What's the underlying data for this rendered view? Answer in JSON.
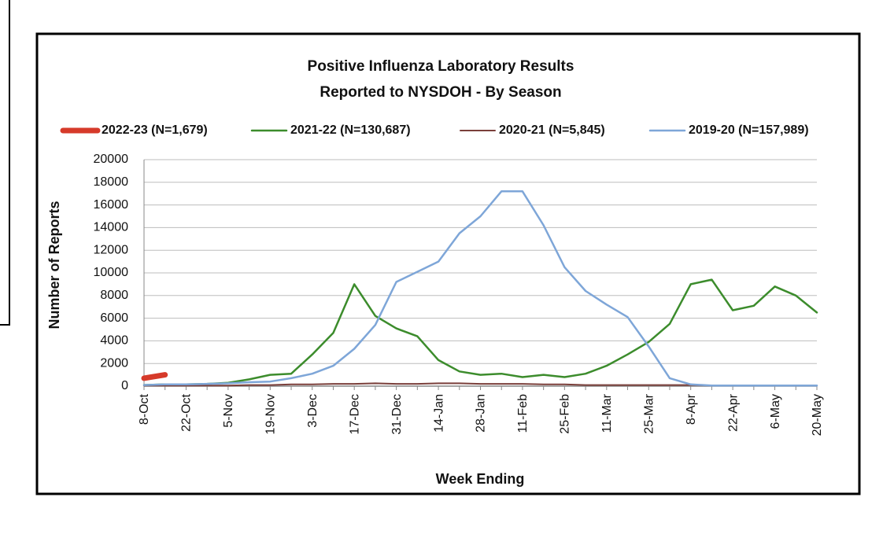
{
  "chart_data": {
    "type": "line",
    "title": [
      "Positive Influenza Laboratory Results",
      "Reported to NYSDOH - By Season"
    ],
    "x_label": "Week Ending",
    "y_label": "Number of Reports",
    "categories": [
      "8-Oct",
      null,
      "22-Oct",
      null,
      "5-Nov",
      null,
      "19-Nov",
      null,
      "3-Dec",
      null,
      "17-Dec",
      null,
      "31-Dec",
      null,
      "14-Jan",
      null,
      "28-Jan",
      null,
      "11-Feb",
      null,
      "25-Feb",
      null,
      "11-Mar",
      null,
      "25-Mar",
      null,
      "8-Apr",
      null,
      "22-Apr",
      null,
      "6-May",
      null,
      "20-May"
    ],
    "ylim": [
      0,
      20000
    ],
    "yticks": [
      0,
      2000,
      4000,
      6000,
      8000,
      10000,
      12000,
      14000,
      16000,
      18000,
      20000
    ],
    "grid": true,
    "series": [
      {
        "name": "2022-23 (N=1,679)",
        "color": "#d63a2a",
        "width": 7,
        "values": [
          700,
          1000,
          null,
          null,
          null,
          null,
          null,
          null,
          null,
          null,
          null,
          null,
          null,
          null,
          null,
          null,
          null,
          null,
          null,
          null,
          null,
          null,
          null,
          null,
          null,
          null,
          null,
          null,
          null,
          null,
          null,
          null,
          null
        ]
      },
      {
        "name": "2021-22 (N=130,687)",
        "color": "#3c8c2c",
        "width": 2.5,
        "values": [
          100,
          150,
          150,
          200,
          300,
          600,
          1000,
          1100,
          2800,
          4700,
          9000,
          6200,
          5100,
          4400,
          2300,
          1300,
          1000,
          1100,
          800,
          1000,
          800,
          1100,
          1800,
          2800,
          3900,
          5500,
          9000,
          9400,
          6700,
          7100,
          8800,
          8000,
          6500
        ]
      },
      {
        "name": "2020-21 (N=5,845)",
        "color": "#7a3f3a",
        "width": 2,
        "values": [
          50,
          50,
          50,
          50,
          50,
          100,
          100,
          150,
          150,
          200,
          200,
          250,
          200,
          200,
          250,
          250,
          200,
          200,
          200,
          150,
          150,
          100,
          100,
          100,
          100,
          100,
          100,
          50,
          50,
          50,
          50,
          50,
          50
        ]
      },
      {
        "name": "2019-20 (N=157,989)",
        "color": "#7ea6d8",
        "width": 2.5,
        "values": [
          100,
          150,
          150,
          200,
          250,
          350,
          400,
          700,
          1100,
          1800,
          3300,
          5400,
          9200,
          10100,
          11000,
          13500,
          15000,
          17200,
          17200,
          14200,
          10500,
          8400,
          7200,
          6100,
          3500,
          700,
          150,
          50,
          50,
          50,
          50,
          50,
          50
        ]
      }
    ]
  }
}
